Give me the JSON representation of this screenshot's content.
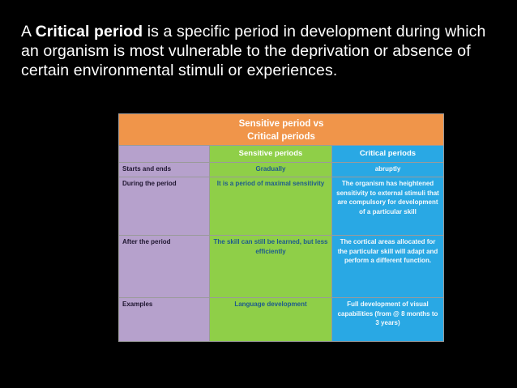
{
  "intro": {
    "term": "Critical period",
    "before": "A ",
    "after": " is a specific period in development during which an organism is most vulnerable to the deprivation or absence of certain environmental stimuli or experiences."
  },
  "table": {
    "title_line1": "Sensitive period vs",
    "title_line2": "Critical periods",
    "headers": [
      "",
      "Sensitive periods",
      "Critical periods"
    ],
    "rows": [
      {
        "label": "Starts and ends",
        "sensitive": "Gradually",
        "critical": "abruptly"
      },
      {
        "label": "During the period",
        "sensitive": "It is a period of maximal sensitivity",
        "critical": "The organism has heightened sensitivity to external stimuli that are compulsory for development of a particular skill"
      },
      {
        "label": "After the period",
        "sensitive": "The skill can still be learned, but less efficiently",
        "critical": "The cortical areas allocated for the particular skill will adapt and perform a different function."
      },
      {
        "label": "Examples",
        "sensitive": "Language development",
        "critical": "Full development of visual capabilities (from @ 8 months to 3 years)"
      }
    ]
  },
  "colors": {
    "background": "#000000",
    "title_band": "#f0954a",
    "label_column": "#b6a1cc",
    "sensitive_column": "#8fcf48",
    "critical_column": "#29a8e4"
  }
}
